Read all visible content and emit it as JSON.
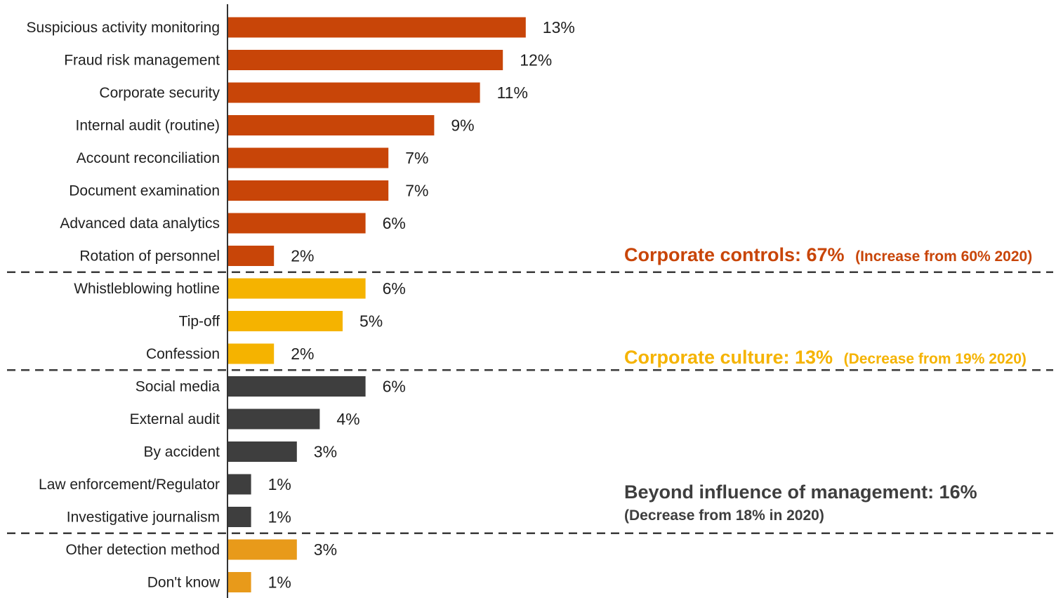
{
  "chart_data": {
    "type": "bar",
    "orientation": "horizontal",
    "value_unit": "%",
    "categories": [
      "Suspicious activity monitoring",
      "Fraud risk management",
      "Corporate security",
      "Internal audit (routine)",
      "Account reconciliation",
      "Document examination",
      "Advanced data analytics",
      "Rotation of personnel",
      "Whistleblowing hotline",
      "Tip-off",
      "Confession",
      "Social media",
      "External audit",
      "By accident",
      "Law enforcement/Regulator",
      "Investigative journalism",
      "Other detection method",
      "Don't know"
    ],
    "values": [
      13,
      12,
      11,
      9,
      7,
      7,
      6,
      2,
      6,
      5,
      2,
      6,
      4,
      3,
      1,
      1,
      3,
      1
    ],
    "value_labels": [
      "13%",
      "12%",
      "11%",
      "9%",
      "7%",
      "7%",
      "6%",
      "2%",
      "6%",
      "5%",
      "2%",
      "6%",
      "4%",
      "3%",
      "1%",
      "1%",
      "3%",
      "1%"
    ],
    "groups": [
      {
        "key": "controls",
        "color": "#c84508",
        "start": 0,
        "count": 8,
        "label": "Corporate controls: 67%",
        "note": "(Increase from 60% 2020)"
      },
      {
        "key": "culture",
        "color": "#f5b300",
        "start": 8,
        "count": 3,
        "label": "Corporate culture: 13%",
        "note": "(Decrease from 19% 2020)"
      },
      {
        "key": "beyond",
        "color": "#3e3e3e",
        "start": 11,
        "count": 5,
        "label": "Beyond influence of management: 16%",
        "note": "(Decrease from 18% in 2020)"
      },
      {
        "key": "other",
        "color": "#e89a1a",
        "start": 16,
        "count": 2,
        "label": "",
        "note": ""
      }
    ],
    "title": "",
    "xlabel": "",
    "ylabel": "",
    "grid": false,
    "legend": "none"
  }
}
